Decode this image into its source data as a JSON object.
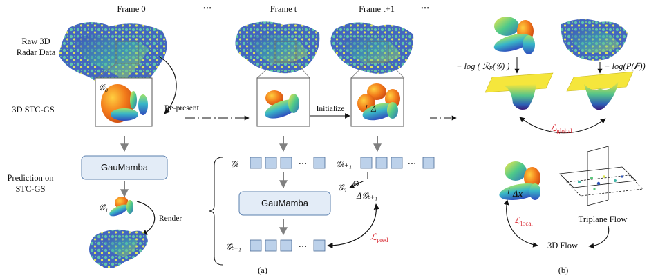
{
  "frames": {
    "frame0": "Frame 0",
    "frame_t": "Frame t",
    "frame_t1": "Frame t+1",
    "ellipsis": "⋯"
  },
  "row_labels": {
    "raw_line1": "Raw 3D",
    "raw_line2": "Radar Data",
    "stcgs": "3D STC-GS",
    "pred_line1": "Prediction on",
    "pred_line2": "STC-GS"
  },
  "arrows": {
    "represent": "Re-present",
    "initialize": "Initialize",
    "render": "Render"
  },
  "math": {
    "g0": "𝒢₀",
    "g_hat_1": "𝒢̂₁",
    "g_t": "𝒢ₜ",
    "g_t1": "𝒢ₜ₊₁",
    "g_hat_t1": "𝒢̂ₜ₊₁",
    "delta": "Δ",
    "delta_g": "Δ𝒢ₜ₊₁",
    "g0_small": "𝒢₀",
    "ominus": "⊖",
    "delta_x": "Δx",
    "neg_log_r": "− log ( ℛₚ(𝒢) )",
    "neg_log_p": "− log(P(𝑭))"
  },
  "modules": {
    "gaumamba_left": "GauMamba",
    "gaumamba_mid": "GauMamba"
  },
  "losses": {
    "global": "ℒ",
    "global_sub": "global",
    "local": "ℒ",
    "local_sub": "local",
    "pred": "ℒ",
    "pred_sub": "pred"
  },
  "flow": {
    "triplane": "Triplane Flow",
    "flow3d": "3D Flow"
  },
  "captions": {
    "a": "(a)",
    "b": "(b)"
  },
  "colors": {
    "box_fill": "#e3ecf7",
    "box_stroke": "#5a7fae",
    "token_fill": "#bcd1ea",
    "arrow_gray": "#808080",
    "loss_red": "#d8262f"
  }
}
